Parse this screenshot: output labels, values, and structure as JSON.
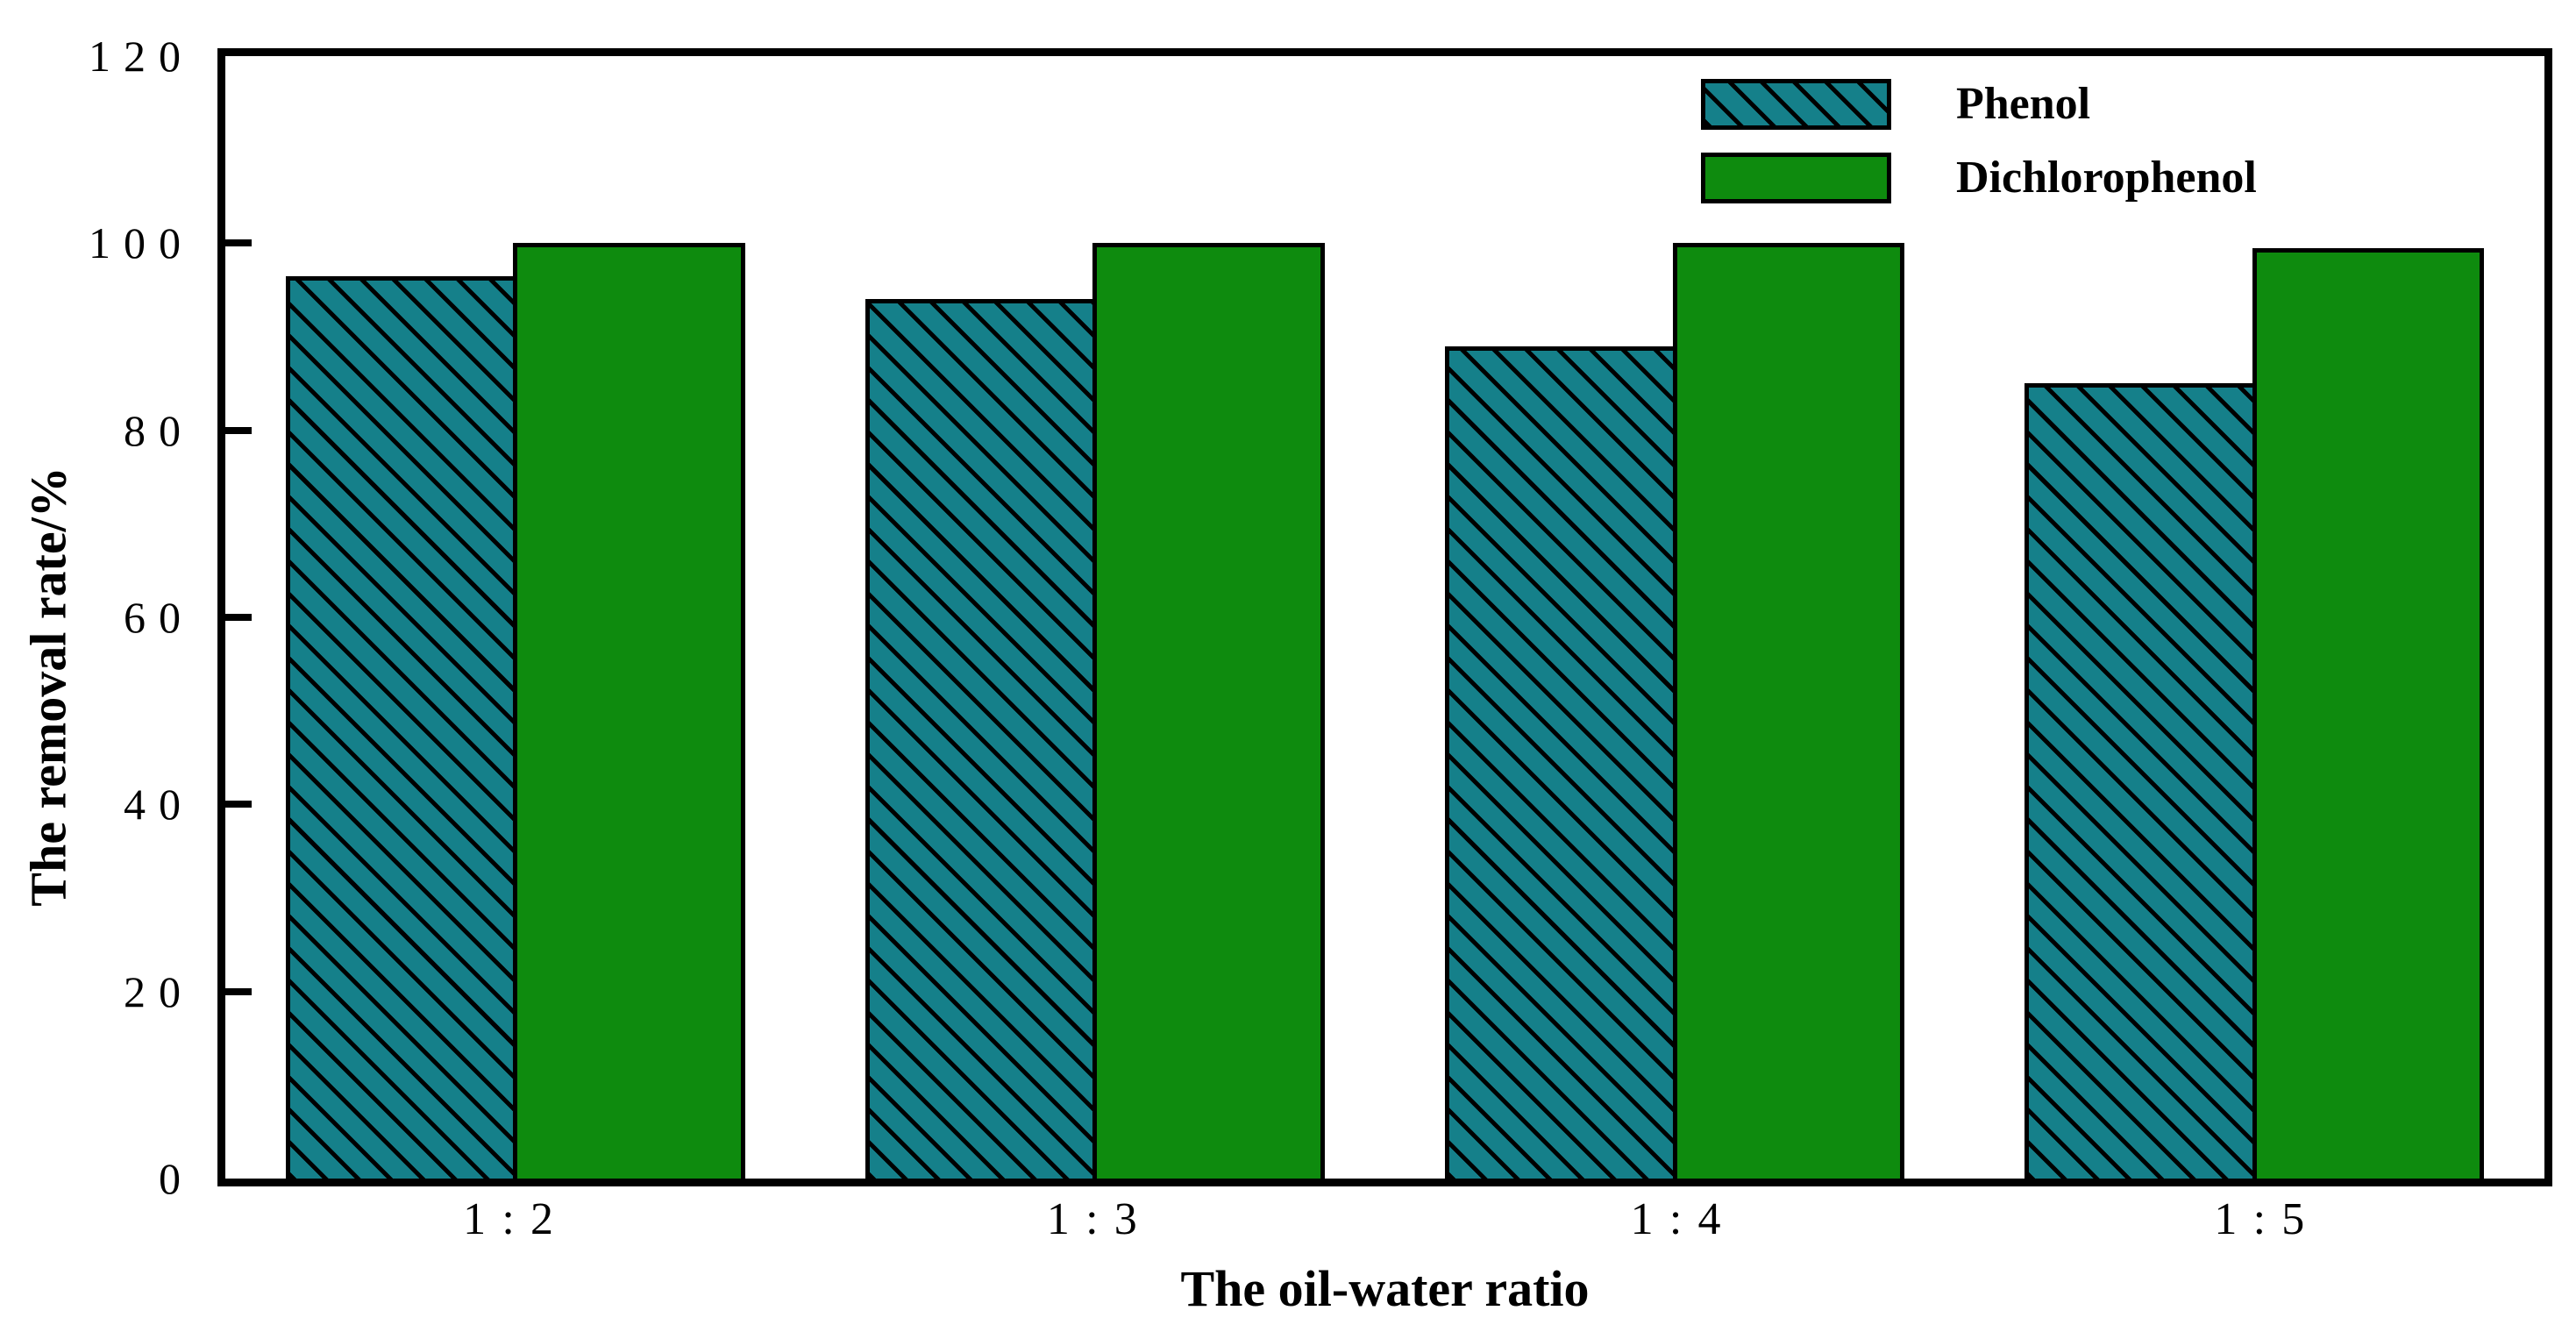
{
  "figure": {
    "background": "#ffffff",
    "frame_color": "#000000",
    "bar_outline_color": "#000000"
  },
  "chart_data": {
    "type": "bar",
    "title": "",
    "xlabel": "The oil-water ratio",
    "ylabel": "The removal rate/%",
    "categories": [
      "1 : 2",
      "1 : 3",
      "1 : 4",
      "1 : 5"
    ],
    "series": [
      {
        "name": "Phenol",
        "color": "#15808a",
        "hatch": "diagonal",
        "values": [
          96.5,
          94,
          89,
          85
        ]
      },
      {
        "name": "Dichlorophenol",
        "color": "#0e8b0e",
        "hatch": "none",
        "values": [
          100,
          100,
          100,
          99.5
        ]
      }
    ],
    "ylim": [
      0,
      120
    ],
    "yticks": [
      0,
      20,
      40,
      60,
      80,
      100,
      120
    ],
    "grid": false,
    "legend_position": "top-right"
  }
}
